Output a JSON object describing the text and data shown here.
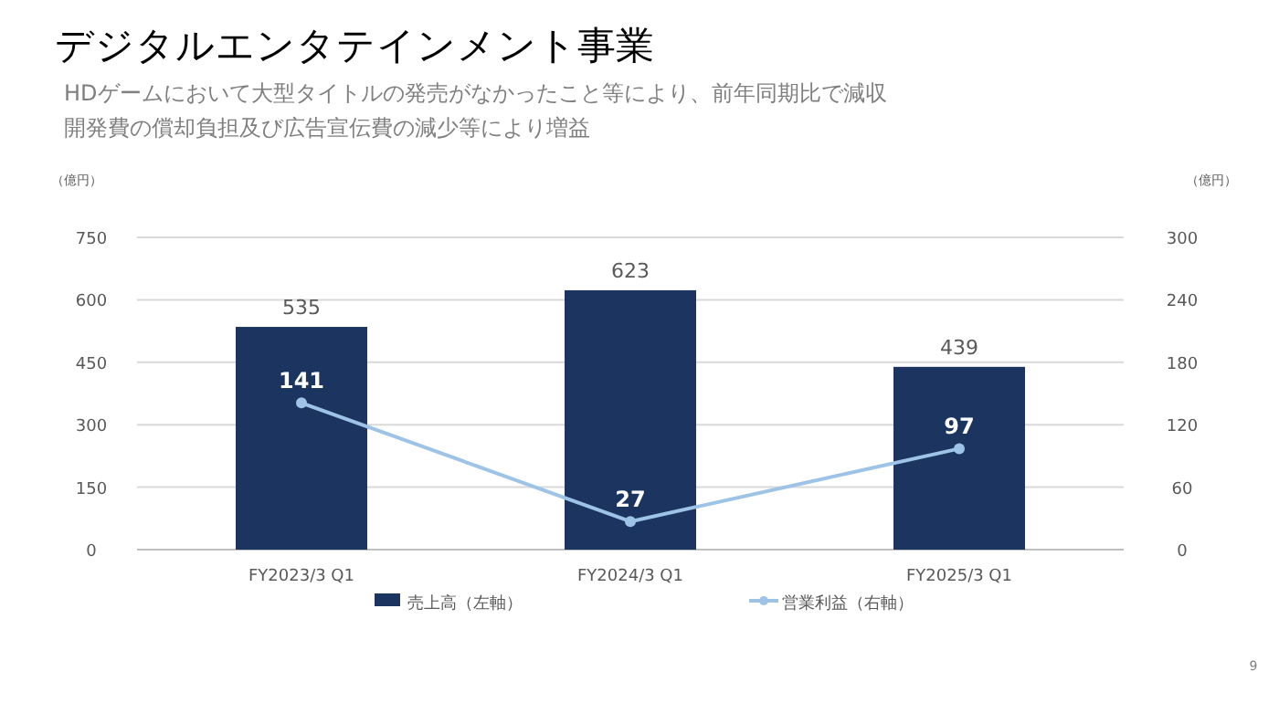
{
  "chart_data": {
    "type": "bar",
    "title": "デジタルエンタテインメント事業",
    "subtitle": "HDゲームにおいて大型タイトルの発売がなかったこと等により、前年同期比で減収",
    "ylabel": "（億円）",
    "y2label": "（億円）",
    "categories": [
      "FY2023/3 Q1",
      "FY2024/3 Q1",
      "FY2025/3 Q1"
    ],
    "series": [
      {
        "name": "売上高（左軸）",
        "color": "#1b3560",
        "values": [
          535,
          623,
          439
        ]
      },
      {
        "name": "営業利益（右軸）",
        "type": "line",
        "axis": "y2",
        "color": "#9dc3e6",
        "values": [
          141,
          27,
          97
        ]
      }
    ],
    "ylim": [
      0,
      750
    ],
    "yticks": [
      0,
      150,
      300,
      450,
      600,
      750
    ],
    "y2lim": [
      0,
      300
    ],
    "y2ticks": [
      0,
      60,
      120,
      180,
      240,
      300
    ],
    "grid": "y",
    "legend": "bottom",
    "marker": "circle",
    "line_style": "solid",
    "data_labels": true,
    "annotations": [
      "開発費の償却負担及び広告宣伝費の減少等により増益",
      "9"
    ]
  }
}
